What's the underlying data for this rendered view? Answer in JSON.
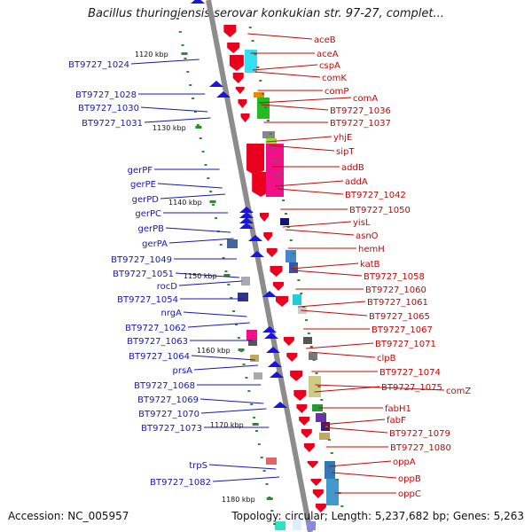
{
  "title": "Bacillus thuringiensis serovar konkukian str. 97-27, complet...",
  "footer": {
    "accession": "Accession: NC_005957",
    "topology": "Topology: circular; Length: 5,237,682 bp; Genes: 5,263"
  },
  "colors": {
    "forward": "#e8001c",
    "reverse": "#1a14e0",
    "forward_label": "#d40000",
    "reverse_label": "#1414c8",
    "backbone": "#8c8c8c",
    "tick": "#2e8b2e"
  },
  "scale_marks": [
    "1120 kbp",
    "1130 kbp",
    "1140 kbp",
    "1150 kbp",
    "1160 kbp",
    "1170 kbp",
    "1180 kbp"
  ],
  "right_labels": [
    "aceB",
    "aceA",
    "cspA",
    "comK",
    "comP",
    "comA",
    "BT9727_1036",
    "BT9727_1037",
    "yhjE",
    "sipT",
    "addB",
    "addA",
    "BT9727_1042",
    "BT9727_1050",
    "yisL",
    "asnO",
    "hemH",
    "katB",
    "BT9727_1058",
    "BT9727_1060",
    "BT9727_1061",
    "BT9727_1065",
    "BT9727_1067",
    "BT9727_1071",
    "clpB",
    "BT9727_1074",
    "BT9727_1075",
    "comZ",
    "fabH1",
    "fabF",
    "BT9727_1079",
    "BT9727_1080",
    "oppA",
    "oppB",
    "oppC"
  ],
  "left_labels": [
    "BT9727_1024",
    "BT9727_1028",
    "BT9727_1030",
    "BT9727_1031",
    "gerPF",
    "gerPE",
    "gerPD",
    "gerPC",
    "gerPB",
    "gerPA",
    "BT9727_1049",
    "BT9727_1051",
    "rocD",
    "BT9727_1054",
    "nrgA",
    "BT9727_1062",
    "BT9727_1063",
    "BT9727_1064",
    "prsA",
    "BT9727_1068",
    "BT9727_1069",
    "BT9727_1070",
    "BT9727_1073",
    "trpS",
    "BT9727_1082"
  ]
}
